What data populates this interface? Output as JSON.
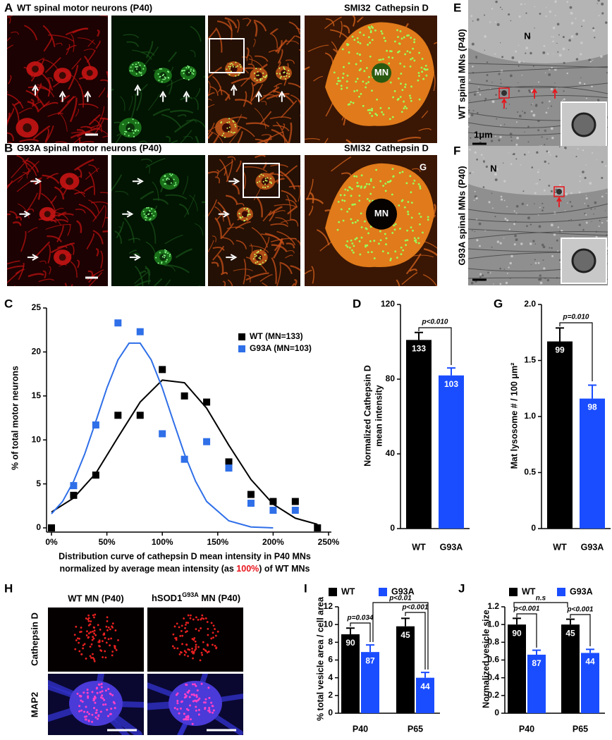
{
  "panels": {
    "A": {
      "label": "A",
      "title": "WT spinal motor neurons (P40)",
      "stain_red": "SMI32",
      "stain_green": "Cathepsin D",
      "inset_label": "MN"
    },
    "B": {
      "label": "B",
      "title": "G93A spinal motor neurons (P40)",
      "stain_red": "SMI32",
      "stain_green": "Cathepsin D",
      "inset_label": "MN",
      "glia_label": "G"
    },
    "E": {
      "label": "E",
      "side_title": "WT spinal MNs (P40)",
      "nucleus_label": "N",
      "scale_bar": "1μm"
    },
    "F": {
      "label": "F",
      "side_title": "G93A spinal MNs (P40)",
      "nucleus_label": "N"
    },
    "H": {
      "label": "H",
      "column_1": "WT MN (P40)",
      "column_2": [
        "hSOD1",
        "G93A",
        " MN (P40)"
      ],
      "row_labels": [
        "Cathepsin D",
        "MAP2"
      ]
    }
  },
  "chart_data": [
    {
      "label": "C",
      "type": "scatter",
      "ylabel": "% of total motor neurons",
      "xlabel": [
        "Distribution curve of cathepsin D mean intensity in P40 MNs",
        "normalized by average mean intensity (as ",
        "100%",
        ") of WT MNs"
      ],
      "highlight_color": "#e8141b",
      "xlim": [
        0,
        250
      ],
      "ylim": [
        0,
        25
      ],
      "xticks": [
        {
          "value": 0,
          "label": "0%"
        },
        {
          "value": 50,
          "label": "50%"
        },
        {
          "value": 100,
          "label": "100%"
        },
        {
          "value": 150,
          "label": "150%"
        },
        {
          "value": 200,
          "label": "200%"
        },
        {
          "value": 250,
          "label": "250%"
        }
      ],
      "yticks": [
        0,
        5,
        10,
        15,
        20,
        25
      ],
      "legend": "upper right",
      "series": [
        {
          "name": "WT (MN=133)",
          "color": "#000000",
          "x": [
            0,
            20,
            40,
            60,
            80,
            100,
            120,
            140,
            160,
            180,
            200,
            220,
            240
          ],
          "values": [
            0,
            3.7,
            6,
            12.8,
            12.8,
            18,
            15,
            14.3,
            7.5,
            3.8,
            3,
            3,
            0
          ],
          "fit": {
            "x": [
              0,
              20,
              40,
              60,
              80,
              100,
              120,
              140,
              160,
              180,
              200,
              220,
              240
            ],
            "values": [
              1.8,
              3.4,
              6.2,
              10.3,
              14.3,
              16.8,
              16.5,
              13.6,
              9.4,
              5.5,
              2.7,
              1.1,
              0.4
            ]
          }
        },
        {
          "name": "G93A (MN=103)",
          "color": "#2f6fe8",
          "x": [
            20,
            40,
            60,
            80,
            100,
            120,
            140,
            160,
            180,
            200,
            220
          ],
          "values": [
            4.8,
            11.7,
            23.3,
            22.3,
            10.7,
            7.8,
            9.8,
            6.8,
            2.8,
            2,
            2
          ],
          "fit": {
            "x": [
              0,
              10,
              20,
              30,
              40,
              50,
              60,
              70,
              80,
              90,
              100,
              110,
              120,
              130,
              140,
              160,
              180,
              200
            ],
            "values": [
              1.6,
              3.0,
              5.3,
              8.4,
              12.1,
              15.9,
              19.1,
              21.0,
              21.0,
              19.1,
              15.9,
              12.1,
              8.4,
              5.3,
              3.0,
              0.8,
              0.1,
              0.0
            ]
          }
        }
      ]
    },
    {
      "label": "D",
      "type": "bar",
      "ylabel": [
        "Normalized Cathepsin D",
        "mean intensity"
      ],
      "categories": [
        "WT",
        "G93A"
      ],
      "values": [
        101,
        82
      ],
      "errors": [
        4,
        4
      ],
      "n": [
        133,
        103
      ],
      "colors": [
        "#000000",
        "#1a4dff"
      ],
      "ylim": [
        0,
        120
      ],
      "yticks": [
        0,
        40,
        80,
        120
      ],
      "comparisons": [
        "p<0.010"
      ]
    },
    {
      "label": "G",
      "type": "bar",
      "ylabel": [
        "Mat lysosome # / 100 μm²"
      ],
      "categories": [
        "WT",
        "G93A"
      ],
      "values": [
        1.67,
        1.16
      ],
      "errors": [
        0.12,
        0.12
      ],
      "n": [
        99,
        98
      ],
      "colors": [
        "#000000",
        "#1a4dff"
      ],
      "ylim": [
        0,
        2
      ],
      "yticks": [
        0,
        0.5,
        {
          "value": 1,
          "label": "1.0"
        },
        1.5,
        {
          "value": 2,
          "label": "2.0"
        }
      ],
      "comparisons": [
        "p=0.010"
      ]
    },
    {
      "label": "I",
      "type": "grouped_bar",
      "ylabel": [
        "% total vesicle area / cell area"
      ],
      "categories": [
        "P40",
        "P65"
      ],
      "series": [
        {
          "name": "WT",
          "color": "#000000",
          "values": [
            8.9,
            9.8
          ],
          "errors": [
            0.7,
            0.9
          ],
          "n": [
            90,
            45
          ]
        },
        {
          "name": "G93A",
          "color": "#1a4dff",
          "values": [
            6.9,
            4.0
          ],
          "errors": [
            0.8,
            0.6
          ],
          "n": [
            87,
            44
          ]
        }
      ],
      "ylim": [
        0,
        12
      ],
      "yticks": [
        0,
        2,
        4,
        6,
        8,
        10,
        12
      ],
      "legend": "top",
      "comparisons": [
        "p=0.034",
        "p<0.001",
        "p<0.01"
      ]
    },
    {
      "label": "J",
      "type": "grouped_bar",
      "ylabel": [
        "Normalized vesicle size"
      ],
      "categories": [
        "P40",
        "P65"
      ],
      "series": [
        {
          "name": "WT",
          "color": "#000000",
          "values": [
            1.0,
            1.0
          ],
          "errors": [
            0.07,
            0.06
          ],
          "n": [
            90,
            45
          ]
        },
        {
          "name": "G93A",
          "color": "#1a4dff",
          "values": [
            0.66,
            0.68
          ],
          "errors": [
            0.05,
            0.04
          ],
          "n": [
            87,
            44
          ]
        }
      ],
      "ylim": [
        0,
        1.2
      ],
      "yticks": [
        0,
        0.2,
        0.4,
        0.6,
        0.8,
        {
          "value": 1,
          "label": "1.0"
        },
        1.2
      ],
      "legend": "top",
      "comparisons": [
        "p<0.001",
        "p<0.001",
        "n.s"
      ]
    }
  ]
}
